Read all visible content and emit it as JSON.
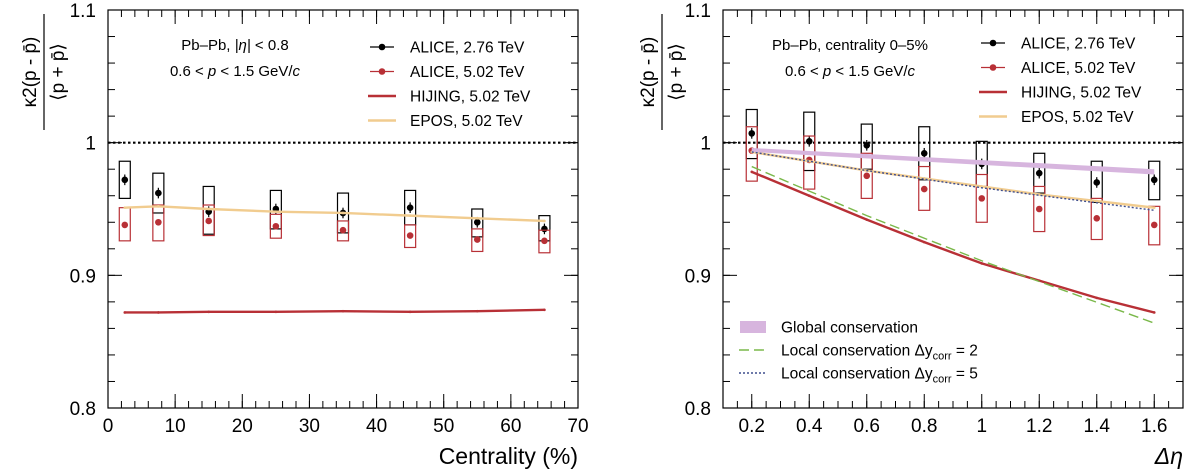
{
  "colors": {
    "alice276": "#000000",
    "alice502": "#b83036",
    "hijing": "#b83036",
    "epos": "#f1cc8f",
    "global": "#d7b5de",
    "local2": "#7ab84a",
    "local5": "#3f4e8e"
  },
  "chart_data": [
    {
      "type": "scatter",
      "panel": "left",
      "title": "",
      "xlabel": "Centrality (%)",
      "ylabel_numerator": "κ2(p - p̄)",
      "ylabel_denominator": "⟨p + p̄⟩",
      "xlim": [
        0,
        70
      ],
      "ylim": [
        0.8,
        1.1
      ],
      "xticks": [
        "0",
        "10",
        "20",
        "30",
        "40",
        "50",
        "60",
        "70"
      ],
      "yticks": [
        "0.8",
        "0.9",
        "1",
        "1.1"
      ],
      "reference_line_y": 1,
      "annotations": [
        "Pb–Pb, |η| < 0.8",
        "0.6 < p < 1.5 GeV/c"
      ],
      "legend_position": "top-right",
      "series": [
        {
          "name": "ALICE, 2.76 TeV",
          "kind": "points",
          "color_key": "alice276",
          "x": [
            2.5,
            7.5,
            15,
            25,
            35,
            45,
            55,
            65
          ],
          "y": [
            0.972,
            0.962,
            0.948,
            0.95,
            0.947,
            0.951,
            0.94,
            0.935
          ],
          "stat_err": [
            0.004,
            0.004,
            0.004,
            0.004,
            0.004,
            0.004,
            0.004,
            0.004
          ],
          "sys_low": [
            0.958,
            0.947,
            0.931,
            0.935,
            0.932,
            0.938,
            0.929,
            0.926
          ],
          "sys_high": [
            0.986,
            0.977,
            0.967,
            0.964,
            0.962,
            0.964,
            0.95,
            0.945
          ]
        },
        {
          "name": "ALICE, 5.02 TeV",
          "kind": "points",
          "color_key": "alice502",
          "x": [
            2.5,
            7.5,
            15,
            25,
            35,
            45,
            55,
            65
          ],
          "y": [
            0.938,
            0.94,
            0.941,
            0.937,
            0.934,
            0.93,
            0.927,
            0.926
          ],
          "stat_err": [
            0.002,
            0.002,
            0.002,
            0.002,
            0.002,
            0.002,
            0.002,
            0.002
          ],
          "sys_low": [
            0.926,
            0.926,
            0.93,
            0.928,
            0.926,
            0.921,
            0.918,
            0.917
          ],
          "sys_high": [
            0.951,
            0.953,
            0.953,
            0.946,
            0.941,
            0.938,
            0.935,
            0.934
          ]
        },
        {
          "name": "HIJING, 5.02 TeV",
          "kind": "line",
          "color_key": "hijing",
          "x": [
            2.5,
            7.5,
            15,
            25,
            35,
            45,
            55,
            65
          ],
          "y": [
            0.872,
            0.872,
            0.8725,
            0.8725,
            0.873,
            0.8725,
            0.873,
            0.874
          ]
        },
        {
          "name": "EPOS, 5.02 TeV",
          "kind": "line",
          "color_key": "epos",
          "x": [
            2.5,
            7.5,
            15,
            25,
            35,
            45,
            55,
            65
          ],
          "y": [
            0.951,
            0.952,
            0.95,
            0.948,
            0.947,
            0.945,
            0.943,
            0.941
          ]
        }
      ]
    },
    {
      "type": "scatter",
      "panel": "right",
      "title": "",
      "xlabel": "Δη",
      "ylabel_numerator": "κ2(p - p̄)",
      "ylabel_denominator": "⟨p + p̄⟩",
      "xlim": [
        0.1,
        1.7
      ],
      "ylim": [
        0.8,
        1.1
      ],
      "xticks": [
        "0.2",
        "0.4",
        "0.6",
        "0.8",
        "1",
        "1.2",
        "1.4",
        "1.6"
      ],
      "yticks": [
        "0.8",
        "0.9",
        "1",
        "1.1"
      ],
      "reference_line_y": 1,
      "annotations": [
        "Pb–Pb, centrality 0–5%",
        "0.6 < p < 1.5 GeV/c"
      ],
      "legend_position": "top-right",
      "legend2_position": "bottom-left",
      "series": [
        {
          "name": "ALICE, 2.76 TeV",
          "kind": "points",
          "color_key": "alice276",
          "x": [
            0.2,
            0.4,
            0.6,
            0.8,
            1.0,
            1.2,
            1.4,
            1.6
          ],
          "y": [
            1.007,
            1.001,
            0.998,
            0.992,
            0.984,
            0.977,
            0.97,
            0.972
          ],
          "stat_err": [
            0.004,
            0.004,
            0.004,
            0.004,
            0.004,
            0.004,
            0.004,
            0.004
          ],
          "sys_low": [
            0.988,
            0.979,
            0.98,
            0.972,
            0.967,
            0.962,
            0.955,
            0.957
          ],
          "sys_high": [
            1.025,
            1.023,
            1.014,
            1.012,
            1.001,
            0.992,
            0.986,
            0.986
          ]
        },
        {
          "name": "ALICE, 5.02 TeV",
          "kind": "points",
          "color_key": "alice502",
          "x": [
            0.2,
            0.4,
            0.6,
            0.8,
            1.0,
            1.2,
            1.4,
            1.6
          ],
          "y": [
            0.994,
            0.987,
            0.975,
            0.965,
            0.958,
            0.95,
            0.943,
            0.938
          ],
          "stat_err": [
            0.002,
            0.002,
            0.002,
            0.002,
            0.002,
            0.002,
            0.002,
            0.002
          ],
          "sys_low": [
            0.971,
            0.965,
            0.958,
            0.949,
            0.94,
            0.933,
            0.927,
            0.923
          ],
          "sys_high": [
            1.012,
            1.005,
            0.992,
            0.982,
            0.976,
            0.967,
            0.958,
            0.952
          ]
        },
        {
          "name": "HIJING, 5.02 TeV",
          "kind": "line",
          "color_key": "hijing",
          "x": [
            0.2,
            0.4,
            0.6,
            0.8,
            1.0,
            1.2,
            1.4,
            1.6
          ],
          "y": [
            0.978,
            0.96,
            0.942,
            0.925,
            0.909,
            0.896,
            0.883,
            0.872
          ]
        },
        {
          "name": "EPOS, 5.02 TeV",
          "kind": "line",
          "color_key": "epos",
          "x": [
            0.2,
            0.4,
            0.6,
            0.8,
            1.0,
            1.2,
            1.4,
            1.6
          ],
          "y": [
            0.993,
            0.986,
            0.979,
            0.973,
            0.967,
            0.961,
            0.956,
            0.951
          ]
        },
        {
          "name": "Global conservation",
          "kind": "band",
          "color_key": "global",
          "x": [
            0.2,
            1.6
          ],
          "y_low": [
            0.993,
            0.976
          ],
          "y_high": [
            0.996,
            0.98
          ]
        },
        {
          "name": "Local conservation Δycorr = 2",
          "kind": "dashed",
          "color_key": "local2",
          "x": [
            0.2,
            0.6,
            1.0,
            1.6
          ],
          "y": [
            0.982,
            0.945,
            0.911,
            0.864
          ]
        },
        {
          "name": "Local conservation Δycorr = 5",
          "kind": "dotted",
          "color_key": "local5",
          "x": [
            0.2,
            0.6,
            1.0,
            1.6
          ],
          "y": [
            0.993,
            0.979,
            0.966,
            0.949
          ]
        }
      ]
    }
  ],
  "legend_left": [
    {
      "label": "ALICE, 2.76 TeV",
      "style": "point",
      "color_key": "alice276"
    },
    {
      "label": "ALICE, 5.02 TeV",
      "style": "point",
      "color_key": "alice502"
    },
    {
      "label": "HIJING, 5.02 TeV",
      "style": "line",
      "color_key": "hijing"
    },
    {
      "label": "EPOS, 5.02 TeV",
      "style": "line",
      "color_key": "epos"
    }
  ],
  "legend_right_conservation": [
    {
      "label": "Global conservation",
      "style": "band",
      "color_key": "global"
    },
    {
      "label": "Local conservation Δy",
      "sub": "corr",
      "suffix": " = 2",
      "style": "dashed",
      "color_key": "local2"
    },
    {
      "label": "Local conservation Δy",
      "sub": "corr",
      "suffix": " = 5",
      "style": "dotted",
      "color_key": "local5"
    }
  ]
}
